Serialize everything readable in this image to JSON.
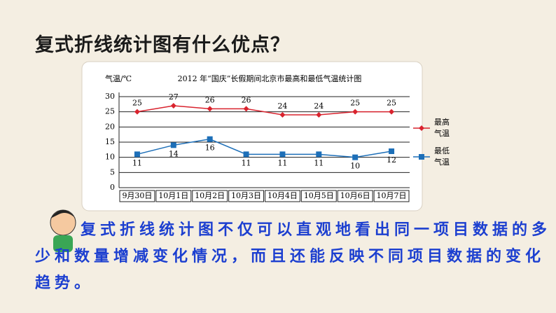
{
  "heading": "复式折线统计图有什么优点？",
  "caption": "复式折线统计图不仅可以直观地看出同一项目数据的多少和数量增减变化情况，而且还能反映不同项目数据的变化趋势。",
  "chart_data": {
    "type": "line",
    "title": "2012 年“国庆”长假期间北京市最高和最低气温统计图",
    "y_label": "气温/℃",
    "categories": [
      "9月30日",
      "10月1日",
      "10月2日",
      "10月3日",
      "10月4日",
      "10月5日",
      "10月6日",
      "10月7日"
    ],
    "series": [
      {
        "name": "最高气温",
        "color": "#d9232e",
        "marker": "diamond",
        "values": [
          25,
          27,
          26,
          26,
          24,
          24,
          25,
          25
        ]
      },
      {
        "name": "最低气温",
        "color": "#1d6fb8",
        "marker": "square",
        "values": [
          11,
          14,
          16,
          11,
          11,
          11,
          10,
          12
        ]
      }
    ],
    "ylim": [
      0,
      30
    ],
    "yticks": [
      0,
      5,
      10,
      15,
      20,
      25,
      30
    ],
    "grid": true
  }
}
